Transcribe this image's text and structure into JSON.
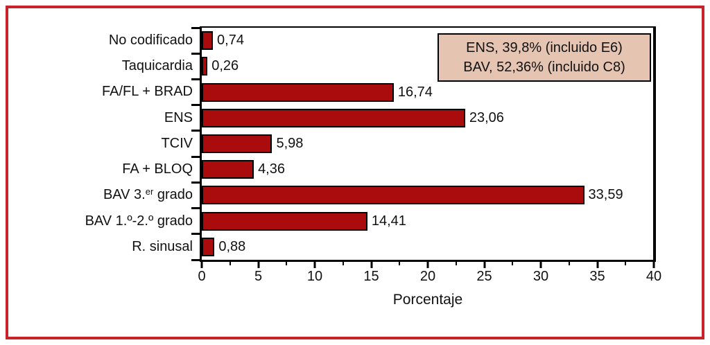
{
  "chart_data": {
    "type": "bar",
    "orientation": "horizontal",
    "title": "",
    "xlabel": "Porcentaje",
    "ylabel": "",
    "xlim": [
      0,
      40
    ],
    "x_ticks": [
      0,
      5,
      10,
      15,
      20,
      25,
      30,
      35,
      40
    ],
    "x_tick_labels": [
      "0",
      "5",
      "10",
      "15",
      "20",
      "25",
      "30",
      "35",
      "40"
    ],
    "x_minor_tick_step": 2.5,
    "grid": false,
    "categories": [
      "No codificado",
      "Taquicardia",
      "FA/FL + BRAD",
      "ENS",
      "TCIV",
      "FA + BLOQ",
      "BAV 3.^{er} grado",
      "BAV 1.º-2.º grado",
      "R. sinusal"
    ],
    "values": [
      0.74,
      0.26,
      16.74,
      23.06,
      5.98,
      4.36,
      33.59,
      14.41,
      0.88
    ],
    "value_labels": [
      "0,74",
      "0,26",
      "16,74",
      "23,06",
      "5,98",
      "4,36",
      "33,59",
      "14,41",
      "0,88"
    ],
    "annotation_box": {
      "position": "top-right",
      "lines": [
        "ENS, 39,8% (incluido E6)",
        "BAV, 52,36% (incluido C8)"
      ]
    },
    "colors": {
      "bar_fill": "#aa0b0c",
      "bar_border": "#000000",
      "annotation_bg": "#e6c4b2",
      "annotation_border": "#000000",
      "outer_frame": "#c8232a",
      "axis": "#000000",
      "text": "#111111"
    }
  }
}
